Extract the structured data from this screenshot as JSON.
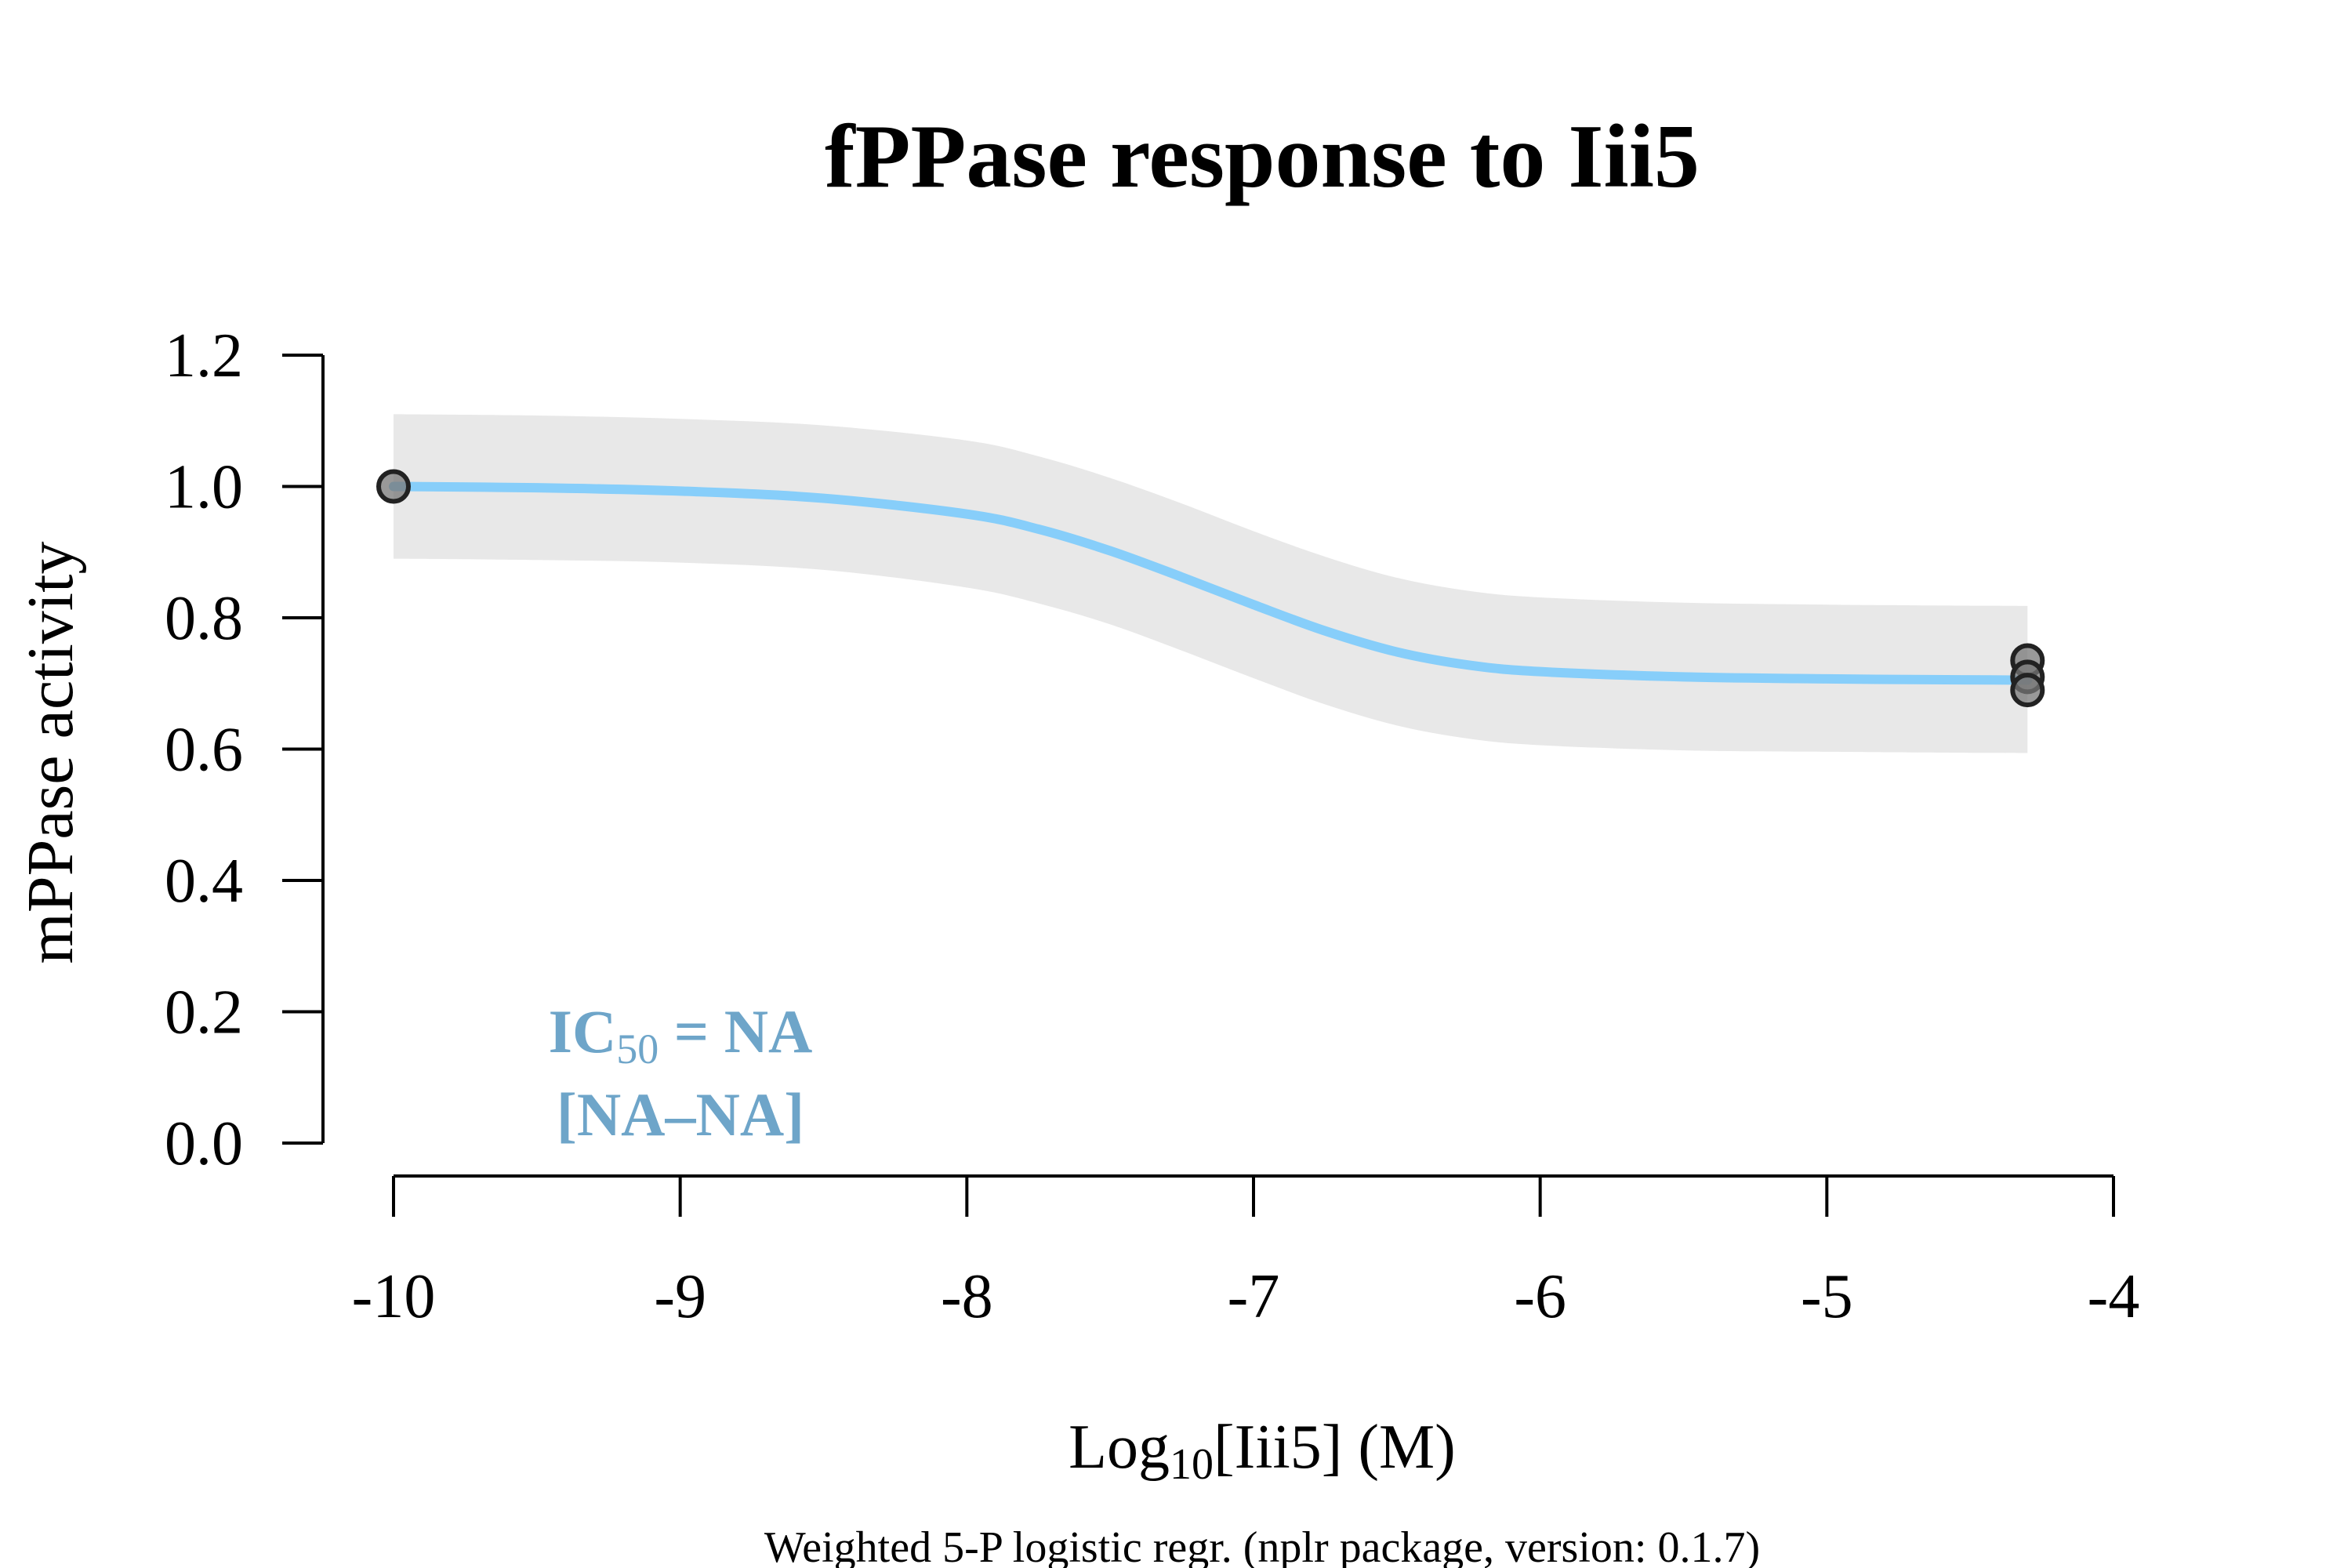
{
  "chart_data": {
    "type": "line",
    "title": "fPPase response to Iii5",
    "xlabel_main": "Log",
    "xlabel_sub": "10",
    "xlabel_rest": "[Iii5] (M)",
    "ylabel": "mPPase activity",
    "footnote": "Weighted 5-P logistic regr. (nplr package, version: 0.1.7)",
    "xlim": [
      -10,
      -4
    ],
    "ylim": [
      0,
      1.2
    ],
    "x_ticks": [
      -10,
      -9,
      -8,
      -7,
      -6,
      -5,
      -4
    ],
    "x_tick_labels": [
      "-10",
      "-9",
      "-8",
      "-7",
      "-6",
      "-5",
      "-4"
    ],
    "y_ticks": [
      0,
      0.2,
      0.4,
      0.6,
      0.8,
      1.0,
      1.2
    ],
    "y_tick_labels": [
      "0.0",
      "0.2",
      "0.4",
      "0.6",
      "0.8",
      "1.0",
      "1.2"
    ],
    "series": [
      {
        "type": "fit",
        "x": [
          -10,
          -9.5,
          -9,
          -8.5,
          -8,
          -7.75,
          -7.5,
          -7.25,
          -7,
          -6.75,
          -6.5,
          -6.25,
          -6,
          -5.5,
          -5,
          -4.7,
          -4.3
        ],
        "y": [
          1.0,
          0.998,
          0.993,
          0.982,
          0.958,
          0.935,
          0.902,
          0.862,
          0.82,
          0.78,
          0.748,
          0.728,
          0.718,
          0.71,
          0.707,
          0.706,
          0.705
        ]
      },
      {
        "type": "confidence_band",
        "x": [
          -10,
          -9.5,
          -9,
          -8.5,
          -8,
          -7.75,
          -7.5,
          -7.25,
          -7,
          -6.75,
          -6.5,
          -6.25,
          -6,
          -5.5,
          -5,
          -4.7,
          -4.3
        ],
        "upper": [
          1.11,
          1.108,
          1.103,
          1.093,
          1.07,
          1.046,
          1.013,
          0.974,
          0.932,
          0.893,
          0.861,
          0.841,
          0.831,
          0.823,
          0.82,
          0.819,
          0.818
        ],
        "lower": [
          0.89,
          0.888,
          0.884,
          0.873,
          0.846,
          0.822,
          0.79,
          0.75,
          0.708,
          0.668,
          0.636,
          0.616,
          0.606,
          0.598,
          0.596,
          0.595,
          0.594
        ]
      },
      {
        "type": "points",
        "x": [
          -10,
          -4.3,
          -4.3,
          -4.3
        ],
        "y": [
          1.0,
          0.735,
          0.71,
          0.69
        ]
      }
    ],
    "annotation": {
      "ic50_label": "IC",
      "ic50_sub": "50",
      "ic50_value": " = NA",
      "ci": "[NA–NA]"
    },
    "colors": {
      "curve": "#87cefa",
      "band": "#e8e8e8",
      "points_fill": "#777777",
      "points_stroke": "#222222",
      "annotation": "#6ea5c9",
      "axis": "#000000"
    },
    "grid": false
  }
}
